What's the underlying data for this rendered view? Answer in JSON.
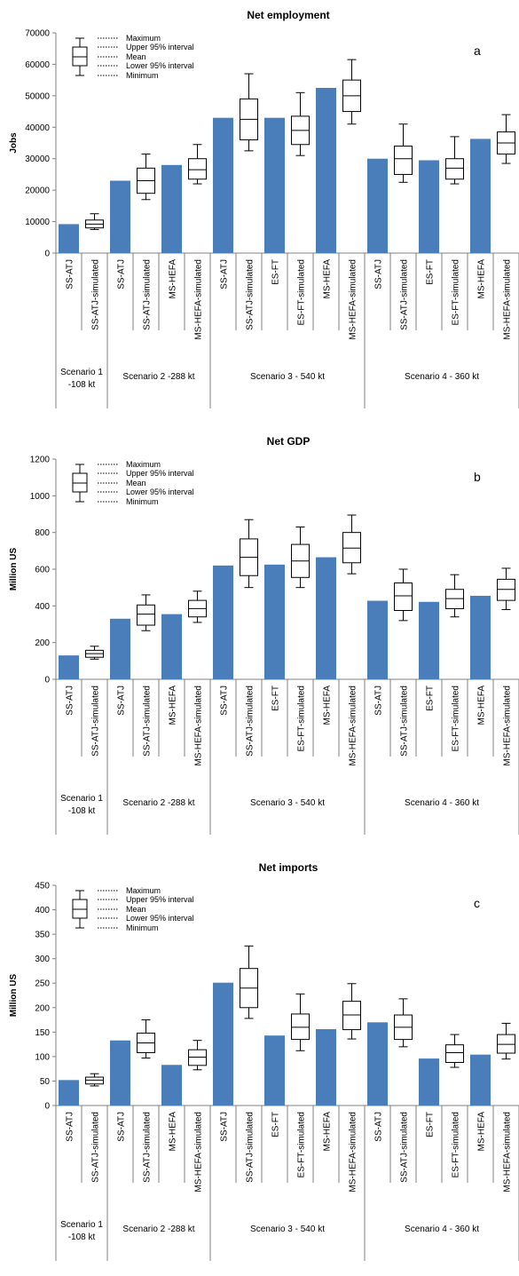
{
  "charts": [
    {
      "title": "Net employment",
      "ylabel": "Jobs",
      "panel_letter": "a",
      "ylim": [
        0,
        70000
      ],
      "yticks": [
        "0",
        "10000",
        "20000",
        "30000",
        "40000",
        "50000",
        "60000",
        "70000"
      ],
      "legend": [
        "Maximum",
        "Upper 95% interval",
        "Mean",
        "Lower 95% interval",
        "Minimum"
      ]
    },
    {
      "title": "Net GDP",
      "ylabel": "Million US",
      "panel_letter": "b",
      "ylim": [
        0,
        1200
      ],
      "yticks": [
        "0",
        "200",
        "400",
        "600",
        "800",
        "1000",
        "1200"
      ],
      "legend": [
        "Maximum",
        "Upper 95% interval",
        "Mean",
        "Lower 95% interval",
        "Minimum"
      ]
    },
    {
      "title": "Net imports",
      "ylabel": "Million US",
      "panel_letter": "c",
      "ylim": [
        0,
        450
      ],
      "yticks": [
        "0",
        "50",
        "100",
        "150",
        "200",
        "250",
        "300",
        "350",
        "400",
        "450"
      ],
      "legend": [
        "Maximum",
        "Upper 95% interval",
        "Mean",
        "Lower 95% interval",
        "Minimum"
      ]
    }
  ],
  "categories": [
    "SS-ATJ",
    "SS-ATJ-simulated",
    "SS-ATJ",
    "SS-ATJ-simulated",
    "MS-HEFA",
    "MS-HEFA-simulated",
    "SS-ATJ",
    "SS-ATJ-simulated",
    "ES-FT",
    "ES-FT-simulated",
    "MS-HEFA",
    "MS-HEFA-simulated",
    "SS-ATJ",
    "SS-ATJ-simulated",
    "ES-FT",
    "ES-FT-simulated",
    "MS-HEFA",
    "MS-HEFA-simulated"
  ],
  "groups": [
    {
      "label_line1": "Scenario 1",
      "label_line2": "-108 kt",
      "start": 0,
      "end": 1
    },
    {
      "label_line1": "Scenario 2 -288 kt",
      "label_line2": "",
      "start": 2,
      "end": 5
    },
    {
      "label_line1": "Scenario 3 - 540 kt",
      "label_line2": "",
      "start": 6,
      "end": 11
    },
    {
      "label_line1": "Scenario 4 - 360 kt",
      "label_line2": "",
      "start": 12,
      "end": 17
    }
  ],
  "colors": {
    "bar": "#4a7ebb",
    "box": "#000000",
    "axis": "#808080"
  },
  "chart_data": [
    {
      "type": "bar",
      "title": "Net employment",
      "ylabel": "Jobs",
      "ylim": [
        0,
        70000
      ],
      "bars": {
        "0": 9200,
        "2": 23000,
        "4": 28000,
        "6": 43000,
        "8": 43000,
        "10": 52500,
        "12": 30000,
        "14": 29500,
        "16": 36300
      },
      "boxes": {
        "1": {
          "min": 7500,
          "lower95": 8000,
          "mean": 9200,
          "upper95": 10500,
          "max": 12500
        },
        "3": {
          "min": 17000,
          "lower95": 19000,
          "mean": 23000,
          "upper95": 27000,
          "max": 31500
        },
        "5": {
          "min": 22000,
          "lower95": 23500,
          "mean": 26500,
          "upper95": 30000,
          "max": 34500
        },
        "7": {
          "min": 32500,
          "lower95": 36000,
          "mean": 42500,
          "upper95": 49000,
          "max": 57000
        },
        "9": {
          "min": 31000,
          "lower95": 34500,
          "mean": 39000,
          "upper95": 43500,
          "max": 51000
        },
        "11": {
          "min": 41000,
          "lower95": 45000,
          "mean": 50000,
          "upper95": 55000,
          "max": 61500
        },
        "13": {
          "min": 22500,
          "lower95": 25000,
          "mean": 30000,
          "upper95": 34000,
          "max": 41000
        },
        "15": {
          "min": 22000,
          "lower95": 23500,
          "mean": 27000,
          "upper95": 30000,
          "max": 37000
        },
        "17": {
          "min": 28500,
          "lower95": 31500,
          "mean": 35000,
          "upper95": 38500,
          "max": 44000
        }
      }
    },
    {
      "type": "bar",
      "title": "Net GDP",
      "ylabel": "Million US",
      "ylim": [
        0,
        1200
      ],
      "bars": {
        "0": 130,
        "2": 330,
        "4": 355,
        "6": 620,
        "8": 625,
        "10": 665,
        "12": 428,
        "14": 422,
        "16": 455
      },
      "boxes": {
        "1": {
          "min": 110,
          "lower95": 120,
          "mean": 140,
          "upper95": 158,
          "max": 180
        },
        "3": {
          "min": 265,
          "lower95": 295,
          "mean": 355,
          "upper95": 405,
          "max": 460
        },
        "5": {
          "min": 310,
          "lower95": 340,
          "mean": 385,
          "upper95": 430,
          "max": 480
        },
        "7": {
          "min": 500,
          "lower95": 565,
          "mean": 665,
          "upper95": 765,
          "max": 870
        },
        "9": {
          "min": 500,
          "lower95": 555,
          "mean": 645,
          "upper95": 735,
          "max": 830
        },
        "11": {
          "min": 575,
          "lower95": 635,
          "mean": 715,
          "upper95": 800,
          "max": 895
        },
        "13": {
          "min": 320,
          "lower95": 375,
          "mean": 455,
          "upper95": 525,
          "max": 600
        },
        "15": {
          "min": 340,
          "lower95": 385,
          "mean": 440,
          "upper95": 490,
          "max": 570
        },
        "17": {
          "min": 380,
          "lower95": 430,
          "mean": 490,
          "upper95": 545,
          "max": 605
        }
      }
    },
    {
      "type": "bar",
      "title": "Net imports",
      "ylabel": "Million US",
      "ylim": [
        0,
        450
      ],
      "bars": {
        "0": 52,
        "2": 133,
        "4": 83,
        "6": 251,
        "8": 143,
        "10": 156,
        "12": 170,
        "14": 96,
        "16": 104
      },
      "boxes": {
        "1": {
          "min": 40,
          "lower95": 44,
          "mean": 52,
          "upper95": 58,
          "max": 65
        },
        "3": {
          "min": 97,
          "lower95": 108,
          "mean": 128,
          "upper95": 148,
          "max": 175
        },
        "5": {
          "min": 73,
          "lower95": 82,
          "mean": 99,
          "upper95": 114,
          "max": 133
        },
        "7": {
          "min": 178,
          "lower95": 200,
          "mean": 240,
          "upper95": 280,
          "max": 326
        },
        "9": {
          "min": 112,
          "lower95": 135,
          "mean": 160,
          "upper95": 187,
          "max": 228
        },
        "11": {
          "min": 136,
          "lower95": 155,
          "mean": 185,
          "upper95": 213,
          "max": 249
        },
        "13": {
          "min": 120,
          "lower95": 135,
          "mean": 160,
          "upper95": 185,
          "max": 218
        },
        "15": {
          "min": 78,
          "lower95": 88,
          "mean": 108,
          "upper95": 124,
          "max": 145
        },
        "17": {
          "min": 95,
          "lower95": 107,
          "mean": 125,
          "upper95": 145,
          "max": 168
        }
      }
    }
  ]
}
